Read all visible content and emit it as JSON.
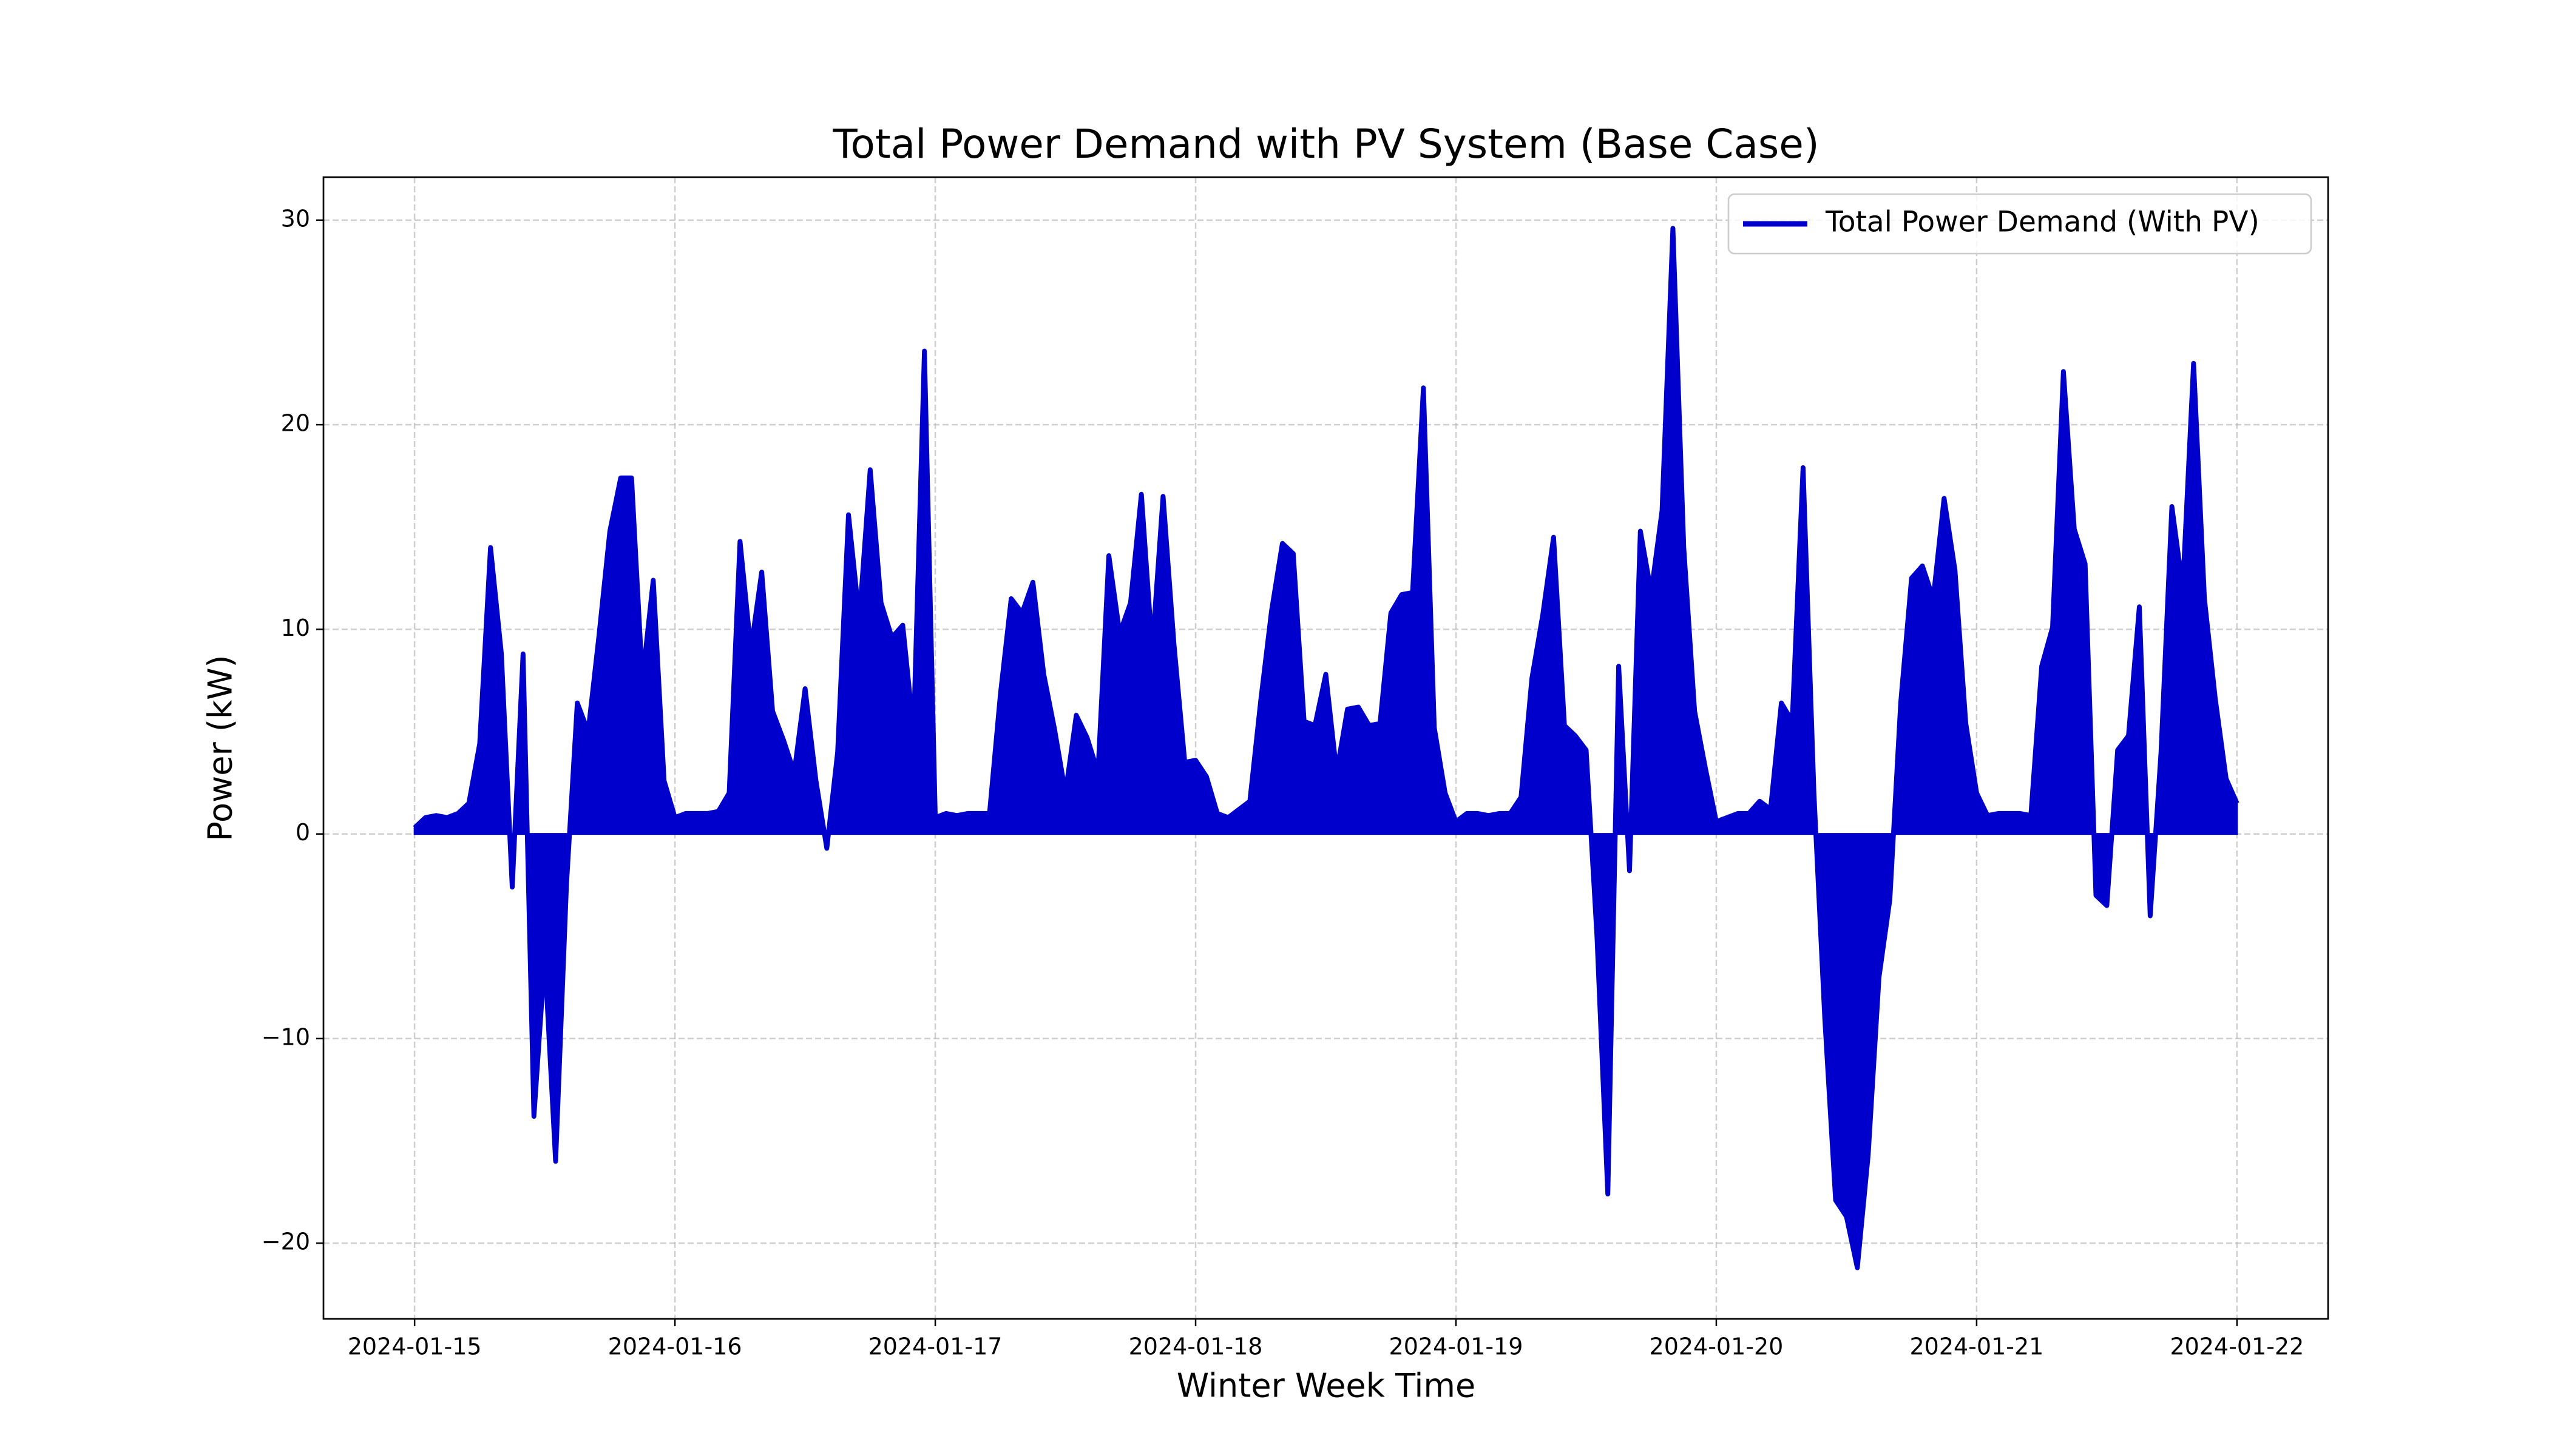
{
  "chart_data": {
    "type": "line",
    "title": "Total Power Demand with PV System (Base Case)",
    "xlabel": "Winter Week Time",
    "ylabel": "Power (kW)",
    "x": [
      0,
      1,
      2,
      3,
      4,
      5,
      6,
      7,
      8,
      9,
      10,
      11,
      12,
      13,
      14,
      15,
      16,
      17,
      18,
      19,
      20,
      21,
      22,
      23,
      24,
      25,
      26,
      27,
      28,
      29,
      30,
      31,
      32,
      33,
      34,
      35,
      36,
      37,
      38,
      39,
      40,
      41,
      42,
      43,
      44,
      45,
      46,
      47,
      48,
      49,
      50,
      51,
      52,
      53,
      54,
      55,
      56,
      57,
      58,
      59,
      60,
      61,
      62,
      63,
      64,
      65,
      66,
      67,
      68,
      69,
      70,
      71,
      72,
      73,
      74,
      75,
      76,
      77,
      78,
      79,
      80,
      81,
      82,
      83,
      84,
      85,
      86,
      87,
      88,
      89,
      90,
      91,
      92,
      93,
      94,
      95,
      96,
      97,
      98,
      99,
      100,
      101,
      102,
      103,
      104,
      105,
      106,
      107,
      108,
      109,
      110,
      111,
      112,
      113,
      114,
      115,
      116,
      117,
      118,
      119,
      120,
      121,
      122,
      123,
      124,
      125,
      126,
      127,
      128,
      129,
      130,
      131,
      132,
      133,
      134,
      135,
      136,
      137,
      138,
      139,
      140,
      141,
      142,
      143,
      144,
      145,
      146,
      147,
      148,
      149,
      150,
      151,
      152,
      153,
      154,
      155,
      156,
      157,
      158,
      159,
      160,
      161,
      162,
      163,
      164,
      165,
      166,
      167,
      168
    ],
    "series": [
      {
        "name": "Total Power Demand (With PV)",
        "color": "#0000cd",
        "fill": true,
        "values": [
          0.3,
          0.8,
          0.9,
          0.8,
          1.0,
          1.5,
          4.4,
          14.0,
          8.8,
          -2.6,
          8.8,
          -13.8,
          -6.0,
          -16.0,
          -2.5,
          6.4,
          5.0,
          9.7,
          14.8,
          17.4,
          17.4,
          7.5,
          12.4,
          2.6,
          0.8,
          1.0,
          1.0,
          1.0,
          1.1,
          2.0,
          14.3,
          9.0,
          12.8,
          6.0,
          4.6,
          3.0,
          7.1,
          2.6,
          -0.7,
          4.0,
          15.6,
          10.5,
          17.8,
          11.3,
          9.6,
          10.2,
          5.0,
          23.6,
          0.8,
          1.0,
          0.9,
          1.0,
          1.0,
          1.0,
          6.8,
          11.5,
          10.8,
          12.3,
          7.8,
          5.1,
          2.0,
          5.8,
          4.7,
          3.0,
          13.6,
          9.8,
          11.3,
          16.6,
          9.0,
          16.5,
          9.3,
          3.5,
          3.6,
          2.8,
          1.0,
          0.8,
          1.2,
          1.6,
          6.5,
          10.9,
          14.2,
          13.7,
          5.5,
          5.3,
          7.8,
          3.0,
          6.1,
          6.2,
          5.3,
          5.4,
          10.8,
          11.7,
          11.8,
          21.8,
          5.2,
          2.0,
          0.6,
          1.0,
          1.0,
          0.9,
          1.0,
          1.0,
          1.8,
          7.6,
          10.7,
          14.5,
          5.3,
          4.8,
          4.1,
          -5.0,
          -17.6,
          8.2,
          -1.8,
          14.8,
          11.8,
          15.8,
          29.6,
          14.0,
          6.0,
          3.2,
          0.6,
          0.8,
          1.0,
          1.0,
          1.6,
          1.2,
          6.4,
          5.5,
          17.9,
          2.0,
          -9.0,
          -17.9,
          -18.7,
          -21.2,
          -15.7,
          -7.0,
          -3.2,
          6.4,
          12.5,
          13.1,
          11.5,
          16.4,
          12.9,
          5.4,
          2.0,
          0.9,
          1.0,
          1.0,
          1.0,
          0.9,
          8.2,
          10.1,
          22.6,
          14.9,
          13.2,
          -3.0,
          -3.5,
          4.1,
          4.8,
          11.1,
          -4.0,
          4.0,
          16.0,
          12.0,
          23.0,
          11.5,
          6.6,
          2.7,
          1.5
        ]
      }
    ],
    "xlim": [
      -8.4,
      176.4
    ],
    "ylim": [
      -23.7,
      32.1
    ],
    "xticks": [
      {
        "value": 0,
        "label": "2024-01-15"
      },
      {
        "value": 24,
        "label": "2024-01-16"
      },
      {
        "value": 48,
        "label": "2024-01-17"
      },
      {
        "value": 72,
        "label": "2024-01-18"
      },
      {
        "value": 96,
        "label": "2024-01-19"
      },
      {
        "value": 120,
        "label": "2024-01-20"
      },
      {
        "value": 144,
        "label": "2024-01-21"
      },
      {
        "value": 168,
        "label": "2024-01-22"
      }
    ],
    "yticks": [
      {
        "value": -20,
        "label": "−20"
      },
      {
        "value": -10,
        "label": "−10"
      },
      0,
      10,
      20,
      30
    ],
    "grid": true,
    "legend": "upper right"
  }
}
